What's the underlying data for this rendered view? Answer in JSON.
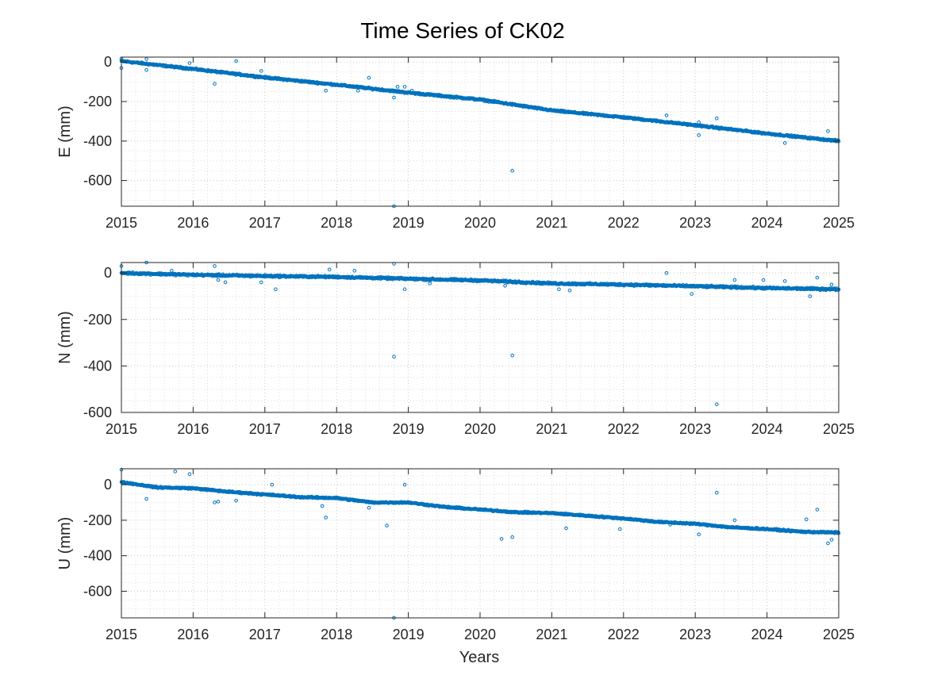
{
  "chart_data": {
    "type": "scatter",
    "title": "Time Series of CK02",
    "xlabel": "Years",
    "marker_color": "#0072BD",
    "xlim": [
      2015,
      2025
    ],
    "xticks": [
      2015,
      2016,
      2017,
      2018,
      2019,
      2020,
      2021,
      2022,
      2023,
      2024,
      2025
    ],
    "grid": "major+minor",
    "subplots": [
      {
        "ylabel": "E (mm)",
        "ylim": [
          -730,
          25
        ],
        "yticks": [
          0,
          -200,
          -400,
          -600
        ],
        "trend": [
          [
            2015.0,
            5
          ],
          [
            2016.0,
            -35
          ],
          [
            2017.0,
            -78
          ],
          [
            2018.0,
            -115
          ],
          [
            2019.0,
            -155
          ],
          [
            2020.0,
            -190
          ],
          [
            2021.0,
            -245
          ],
          [
            2022.0,
            -280
          ],
          [
            2023.0,
            -320
          ],
          [
            2024.0,
            -362
          ],
          [
            2025.0,
            -400
          ]
        ],
        "outliers": [
          [
            2015.0,
            18
          ],
          [
            2015.0,
            -30
          ],
          [
            2015.35,
            15
          ],
          [
            2015.35,
            -40
          ],
          [
            2015.95,
            -5
          ],
          [
            2016.3,
            -110
          ],
          [
            2016.6,
            5
          ],
          [
            2016.95,
            -45
          ],
          [
            2017.85,
            -145
          ],
          [
            2018.3,
            -145
          ],
          [
            2018.45,
            -80
          ],
          [
            2018.8,
            -180
          ],
          [
            2018.85,
            -125
          ],
          [
            2018.95,
            -125
          ],
          [
            2019.05,
            -145
          ],
          [
            2020.25,
            -200
          ],
          [
            2020.45,
            -550
          ],
          [
            2018.8,
            -730
          ],
          [
            2022.6,
            -270
          ],
          [
            2023.05,
            -305
          ],
          [
            2023.05,
            -370
          ],
          [
            2023.3,
            -285
          ],
          [
            2024.25,
            -410
          ],
          [
            2024.85,
            -350
          ]
        ]
      },
      {
        "ylabel": "N (mm)",
        "ylim": [
          -600,
          45
        ],
        "yticks": [
          0,
          -200,
          -400,
          -600
        ],
        "trend": [
          [
            2015.0,
            0
          ],
          [
            2016.0,
            -8
          ],
          [
            2017.0,
            -13
          ],
          [
            2018.0,
            -17
          ],
          [
            2019.0,
            -25
          ],
          [
            2020.0,
            -32
          ],
          [
            2021.0,
            -45
          ],
          [
            2022.0,
            -50
          ],
          [
            2023.0,
            -57
          ],
          [
            2024.0,
            -65
          ],
          [
            2025.0,
            -70
          ]
        ],
        "outliers": [
          [
            2015.0,
            30
          ],
          [
            2015.35,
            45
          ],
          [
            2015.7,
            10
          ],
          [
            2016.3,
            30
          ],
          [
            2016.35,
            -30
          ],
          [
            2016.45,
            -40
          ],
          [
            2016.95,
            -40
          ],
          [
            2017.15,
            -70
          ],
          [
            2017.9,
            15
          ],
          [
            2018.25,
            10
          ],
          [
            2018.8,
            40
          ],
          [
            2018.8,
            -360
          ],
          [
            2018.95,
            -70
          ],
          [
            2019.3,
            -45
          ],
          [
            2020.45,
            -355
          ],
          [
            2020.35,
            -55
          ],
          [
            2021.1,
            -70
          ],
          [
            2021.25,
            -75
          ],
          [
            2022.6,
            0
          ],
          [
            2022.95,
            -90
          ],
          [
            2023.3,
            -565
          ],
          [
            2023.55,
            -30
          ],
          [
            2023.95,
            -30
          ],
          [
            2024.25,
            -35
          ],
          [
            2024.6,
            -100
          ],
          [
            2024.7,
            -20
          ],
          [
            2024.9,
            -50
          ]
        ]
      },
      {
        "ylabel": "U (mm)",
        "ylim": [
          -750,
          90
        ],
        "yticks": [
          0,
          -200,
          -400,
          -600
        ],
        "trend": [
          [
            2015.0,
            15
          ],
          [
            2015.5,
            -15
          ],
          [
            2016.0,
            -20
          ],
          [
            2016.5,
            -40
          ],
          [
            2017.0,
            -55
          ],
          [
            2017.5,
            -70
          ],
          [
            2018.0,
            -75
          ],
          [
            2018.5,
            -100
          ],
          [
            2019.0,
            -100
          ],
          [
            2019.5,
            -125
          ],
          [
            2020.0,
            -140
          ],
          [
            2020.5,
            -155
          ],
          [
            2021.0,
            -160
          ],
          [
            2021.5,
            -175
          ],
          [
            2022.0,
            -190
          ],
          [
            2022.5,
            -210
          ],
          [
            2023.0,
            -220
          ],
          [
            2023.5,
            -240
          ],
          [
            2024.0,
            -250
          ],
          [
            2024.5,
            -265
          ],
          [
            2025.0,
            -270
          ]
        ],
        "outliers": [
          [
            2015.0,
            85
          ],
          [
            2015.35,
            -80
          ],
          [
            2015.75,
            75
          ],
          [
            2015.95,
            60
          ],
          [
            2016.3,
            -100
          ],
          [
            2016.35,
            -95
          ],
          [
            2016.6,
            -90
          ],
          [
            2017.1,
            0
          ],
          [
            2017.8,
            -120
          ],
          [
            2017.85,
            -185
          ],
          [
            2018.45,
            -130
          ],
          [
            2018.7,
            -230
          ],
          [
            2018.95,
            0
          ],
          [
            2018.8,
            -750
          ],
          [
            2020.3,
            -305
          ],
          [
            2020.45,
            -295
          ],
          [
            2021.2,
            -245
          ],
          [
            2021.95,
            -250
          ],
          [
            2022.65,
            -225
          ],
          [
            2023.05,
            -280
          ],
          [
            2023.3,
            -45
          ],
          [
            2023.55,
            -200
          ],
          [
            2024.55,
            -195
          ],
          [
            2024.7,
            -140
          ],
          [
            2024.85,
            -330
          ],
          [
            2024.9,
            -310
          ]
        ]
      }
    ]
  }
}
